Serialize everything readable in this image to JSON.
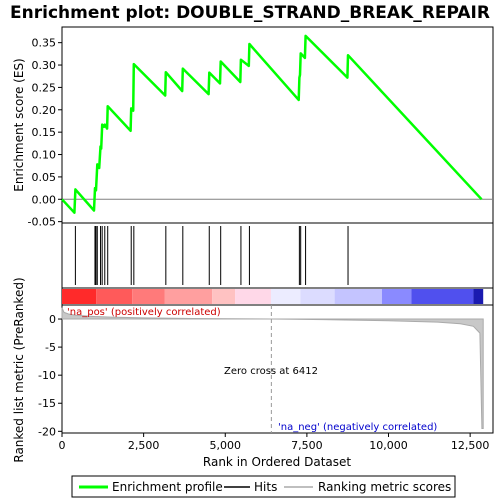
{
  "chart_data": {
    "type": "line",
    "title": "Enrichment plot: DOUBLE_STRAND_BREAK_REPAIR",
    "top_panel": {
      "ylabel": "Enrichment score (ES)",
      "yticks": [
        "0.35",
        "0.30",
        "0.25",
        "0.20",
        "0.15",
        "0.10",
        "0.05",
        "0.00",
        "-0.05"
      ],
      "ylim": [
        -0.053,
        0.385
      ],
      "series": [
        {
          "name": "Enrichment profile",
          "color": "#00ff00",
          "x": [
            0,
            380,
            410,
            980,
            1010,
            1040,
            1080,
            1140,
            1180,
            1200,
            1230,
            1290,
            1310,
            1380,
            1400,
            2100,
            2120,
            2180,
            2200,
            3160,
            3180,
            3680,
            3700,
            4490,
            4510,
            4840,
            4860,
            5460,
            5480,
            5720,
            5740,
            7250,
            7270,
            7290,
            7310,
            7440,
            7460,
            8740,
            8760,
            12850
          ],
          "y": [
            0.0,
            -0.03,
            0.022,
            -0.025,
            0.025,
            0.02,
            0.078,
            0.07,
            0.118,
            0.113,
            0.167,
            0.162,
            0.167,
            0.158,
            0.208,
            0.153,
            0.203,
            0.198,
            0.302,
            0.232,
            0.284,
            0.242,
            0.292,
            0.235,
            0.283,
            0.259,
            0.308,
            0.262,
            0.312,
            0.298,
            0.347,
            0.222,
            0.272,
            0.278,
            0.326,
            0.316,
            0.365,
            0.272,
            0.322,
            0.0
          ]
        }
      ]
    },
    "hits": {
      "name": "Hits",
      "x": [
        410,
        1010,
        1040,
        1080,
        1180,
        1230,
        1310,
        1400,
        2120,
        2200,
        3180,
        3700,
        4510,
        4860,
        5480,
        5740,
        7270,
        7310,
        7460,
        8760
      ]
    },
    "colorbar": {
      "segments": [
        {
          "from": 0,
          "to": 1050,
          "color": "#ff2a2a"
        },
        {
          "from": 1050,
          "to": 2150,
          "color": "#ff5a5a"
        },
        {
          "from": 2150,
          "to": 3150,
          "color": "#ff7a7a"
        },
        {
          "from": 3150,
          "to": 4600,
          "color": "#ff9f9f"
        },
        {
          "from": 4600,
          "to": 5300,
          "color": "#ffc2c2"
        },
        {
          "from": 5300,
          "to": 6400,
          "color": "#ffd8e8"
        },
        {
          "from": 6400,
          "to": 7300,
          "color": "#ececff"
        },
        {
          "from": 7300,
          "to": 8350,
          "color": "#dcdcff"
        },
        {
          "from": 8350,
          "to": 9800,
          "color": "#c4c4ff"
        },
        {
          "from": 9800,
          "to": 10700,
          "color": "#8a8aff"
        },
        {
          "from": 10700,
          "to": 12600,
          "color": "#5050ee"
        },
        {
          "from": 12600,
          "to": 12900,
          "color": "#1a1ab0"
        }
      ]
    },
    "bottom_panel": {
      "ylabel": "Ranked list metric (PreRanked)",
      "yticks": [
        "0",
        "-5",
        "-10",
        "-15",
        "-20"
      ],
      "ylim": [
        -20.3,
        2.5
      ],
      "series": [
        {
          "name": "Ranking metric scores",
          "color": "#aaaaaa",
          "x": [
            0,
            60,
            200,
            400,
            700,
            1000,
            1500,
            2500,
            4000,
            6412,
            8000,
            10000,
            11500,
            12200,
            12600,
            12800,
            12860,
            12900
          ],
          "y": [
            2.0,
            1.2,
            0.9,
            0.7,
            0.55,
            0.45,
            0.35,
            0.2,
            0.1,
            0.0,
            -0.1,
            -0.3,
            -0.55,
            -0.85,
            -1.3,
            -2.5,
            -19.5,
            -19.5
          ]
        }
      ],
      "annotations": {
        "pos_label": "'na_pos' (positively correlated)",
        "neg_label": "'na_neg' (negatively correlated)",
        "zero_cross_label": "Zero cross at 6412",
        "zero_cross_x": 6412
      }
    },
    "xlabel": "Rank in Ordered Dataset",
    "xticks": [
      "0",
      "2,500",
      "5,000",
      "7,500",
      "10,000",
      "12,500"
    ],
    "xtick_values": [
      0,
      2500,
      5000,
      7500,
      10000,
      12500
    ],
    "xlim": [
      0,
      13200
    ],
    "legend": {
      "placement": "bottom",
      "items": [
        {
          "label": "Enrichment profile",
          "color": "#00ff00"
        },
        {
          "label": "Hits",
          "color": "#000000"
        },
        {
          "label": "Ranking metric scores",
          "color": "#aaaaaa"
        }
      ]
    }
  }
}
